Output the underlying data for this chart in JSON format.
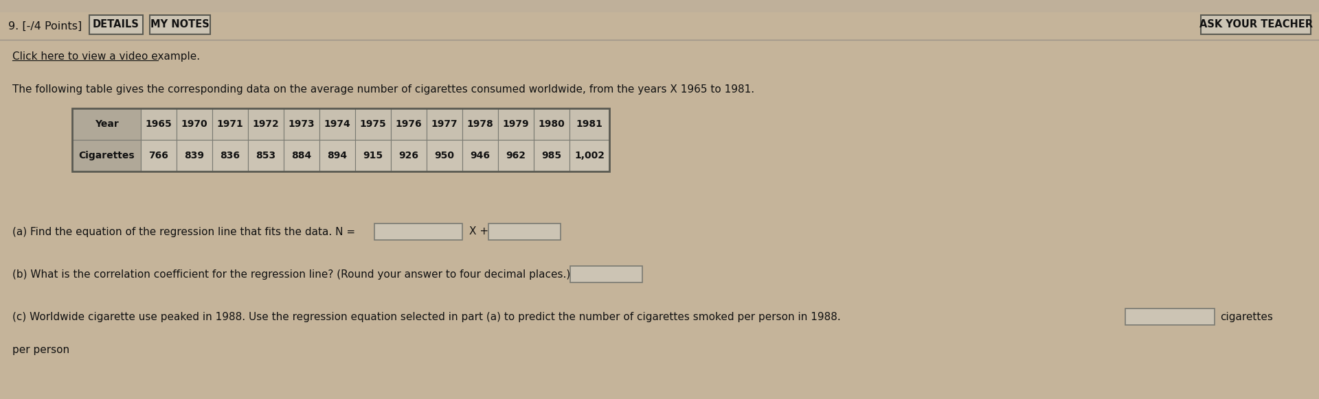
{
  "bg_color": "#c5b49a",
  "top_bar_color": "#c5b49a",
  "panel_color": "#cbbfa8",
  "title_prefix": "9. [-/4 Points]",
  "btn_details": "DETAILS",
  "btn_notes": "MY NOTES",
  "btn_teacher": "ASK YOUR TEACHER",
  "link_text": "Click here to view a video example.",
  "description": "The following table gives the corresponding data on the average number of cigarettes consumed worldwide, from the years X 1965 to 1981.",
  "table_header": [
    "Year",
    "1965",
    "1970",
    "1971",
    "1972",
    "1973",
    "1974",
    "1975",
    "1976",
    "1977",
    "1978",
    "1979",
    "1980",
    "1981"
  ],
  "table_row": [
    "Cigarettes",
    "766",
    "839",
    "836",
    "853",
    "884",
    "894",
    "915",
    "926",
    "950",
    "946",
    "962",
    "985",
    "1,002"
  ],
  "part_a_label": "(a) Find the equation of the regression line that fits the data. N =",
  "part_a_mid": "X +",
  "part_b_label": "(b) What is the correlation coefficient for the regression line? (Round your answer to four decimal places.)",
  "part_c_label": "(c) Worldwide cigarette use peaked in 1988. Use the regression equation selected in part (a) to predict the number of cigarettes smoked per person in 1988.",
  "part_c_suffix": "cigarettes",
  "part_c_last": "per person",
  "table_label_col_bg": "#b0a898",
  "table_header_cell_bg": "#c8c0b0",
  "table_data_cell_bg": "#ccc4b4",
  "table_border": "#7a7a72",
  "outer_border": "#5a5a52",
  "input_box_color": "#ccc4b4",
  "input_box_border": "#7a7a72",
  "btn_bg": "#ccc4b4",
  "btn_border": "#5a5a52",
  "separator_color": "#9a9288",
  "top_strip_color": "#bfb09a"
}
